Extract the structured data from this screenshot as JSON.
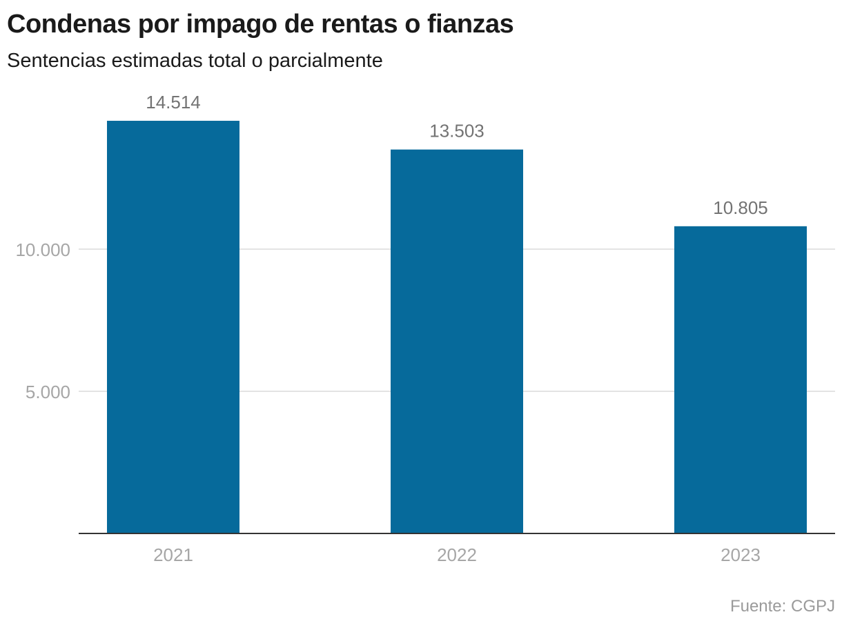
{
  "chart_data": {
    "type": "bar",
    "title": "Condenas por impago de rentas o fianzas",
    "subtitle": "Sentencias estimadas total o parcialmente",
    "categories": [
      "2021",
      "2022",
      "2023"
    ],
    "values": [
      14514,
      13503,
      10805
    ],
    "value_labels": [
      "14.514",
      "13.503",
      "10.805"
    ],
    "xlabel": "",
    "ylabel": "",
    "ylim": [
      0,
      15000
    ],
    "yticks": [
      5000,
      10000
    ],
    "ytick_labels": [
      "5.000",
      "10.000"
    ],
    "grid": true,
    "legend": "none",
    "source": "Fuente: CGPJ",
    "colors": {
      "bar": "#066a9b",
      "grid": "#e3e3e3",
      "baseline": "#333333"
    }
  }
}
